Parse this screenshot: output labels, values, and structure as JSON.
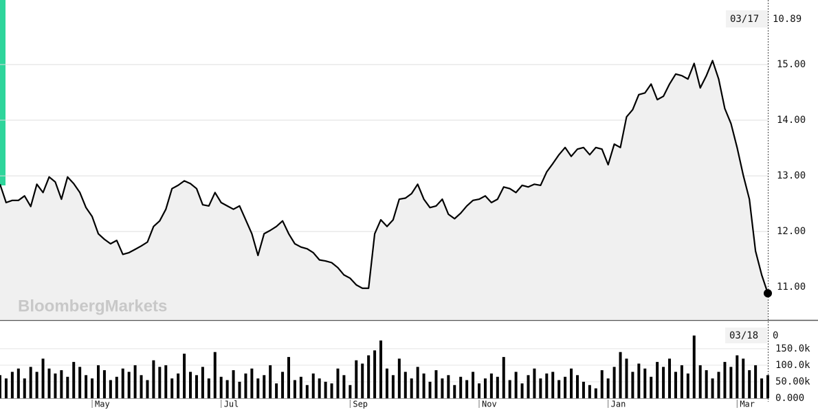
{
  "chart_data": [
    {
      "type": "line",
      "watermark": "BloombergMarkets",
      "crosshair": {
        "label": "03/17"
      },
      "ylim": [
        10.41,
        16.16
      ],
      "xlim": [
        0,
        125
      ],
      "grid": true,
      "yticks": [
        {
          "value": 11,
          "label": "11.00"
        },
        {
          "value": 12,
          "label": "12.00"
        },
        {
          "value": 13,
          "label": "13.00"
        },
        {
          "value": 14,
          "label": "14.00"
        },
        {
          "value": 15,
          "label": "15.00"
        }
      ],
      "series": [
        {
          "color": "#000000",
          "fill": "#f0f0f0",
          "values": [
            12.85,
            12.52,
            12.56,
            12.56,
            12.64,
            12.45,
            12.85,
            12.7,
            12.98,
            12.89,
            12.58,
            12.98,
            12.86,
            12.7,
            12.43,
            12.27,
            11.96,
            11.86,
            11.78,
            11.84,
            11.59,
            11.62,
            11.68,
            11.74,
            11.81,
            12.09,
            12.19,
            12.4,
            12.77,
            12.83,
            12.91,
            12.86,
            12.77,
            12.48,
            12.46,
            12.7,
            12.52,
            12.46,
            12.4,
            12.46,
            12.21,
            11.96,
            11.57,
            11.96,
            12.02,
            12.09,
            12.19,
            11.96,
            11.78,
            11.72,
            11.69,
            11.62,
            11.49,
            11.47,
            11.44,
            11.35,
            11.22,
            11.16,
            11.04,
            10.98,
            10.98,
            11.96,
            12.21,
            12.09,
            12.21,
            12.58,
            12.6,
            12.68,
            12.85,
            12.58,
            12.43,
            12.46,
            12.58,
            12.31,
            12.23,
            12.33,
            12.46,
            12.56,
            12.58,
            12.64,
            12.52,
            12.58,
            12.8,
            12.77,
            12.7,
            12.83,
            12.8,
            12.85,
            12.83,
            13.07,
            13.22,
            13.38,
            13.51,
            13.35,
            13.48,
            13.51,
            13.38,
            13.51,
            13.48,
            13.2,
            13.57,
            13.51,
            14.06,
            14.19,
            14.46,
            14.49,
            14.65,
            14.37,
            14.43,
            14.65,
            14.83,
            14.8,
            14.74,
            15.02,
            14.58,
            14.8,
            15.07,
            14.74,
            14.21,
            13.94,
            13.51,
            13.01,
            12.58,
            11.65,
            11.22,
            10.89
          ]
        }
      ]
    },
    {
      "type": "bar",
      "crosshair": {
        "label": "03/18",
        "value": 0
      },
      "ylim": [
        0,
        235000
      ],
      "xlim": [
        0,
        125
      ],
      "color": "#000000",
      "yticks": [
        {
          "value": 0,
          "label": "0.000"
        },
        {
          "value": 50000,
          "label": "50.00k"
        },
        {
          "value": 100000,
          "label": "100.0k"
        },
        {
          "value": 150000,
          "label": "150.0k"
        }
      ],
      "xticks": [
        {
          "value": 15,
          "label": "May"
        },
        {
          "value": 36,
          "label": "Jul"
        },
        {
          "value": 57,
          "label": "Sep"
        },
        {
          "value": 78,
          "label": "Nov"
        },
        {
          "value": 99,
          "label": "Jan"
        },
        {
          "value": 120,
          "label": "Mar"
        }
      ],
      "values": [
        70000,
        60000,
        80000,
        90000,
        60000,
        95000,
        80000,
        120000,
        90000,
        75000,
        85000,
        65000,
        110000,
        95000,
        70000,
        60000,
        100000,
        85000,
        55000,
        65000,
        90000,
        80000,
        100000,
        70000,
        55000,
        115000,
        95000,
        100000,
        60000,
        75000,
        135000,
        80000,
        70000,
        95000,
        60000,
        140000,
        65000,
        55000,
        85000,
        50000,
        75000,
        90000,
        60000,
        70000,
        100000,
        45000,
        80000,
        125000,
        55000,
        65000,
        40000,
        75000,
        60000,
        50000,
        45000,
        90000,
        70000,
        40000,
        115000,
        105000,
        130000,
        145000,
        175000,
        90000,
        70000,
        120000,
        80000,
        60000,
        95000,
        75000,
        50000,
        85000,
        60000,
        70000,
        40000,
        65000,
        55000,
        80000,
        45000,
        60000,
        75000,
        65000,
        125000,
        55000,
        80000,
        45000,
        70000,
        90000,
        60000,
        75000,
        80000,
        55000,
        65000,
        90000,
        70000,
        50000,
        40000,
        30000,
        85000,
        60000,
        95000,
        140000,
        120000,
        80000,
        105000,
        90000,
        65000,
        110000,
        95000,
        120000,
        80000,
        100000,
        75000,
        190000,
        100000,
        85000,
        60000,
        80000,
        110000,
        95000,
        130000,
        120000,
        85000,
        100000,
        60000,
        70000
      ]
    }
  ]
}
